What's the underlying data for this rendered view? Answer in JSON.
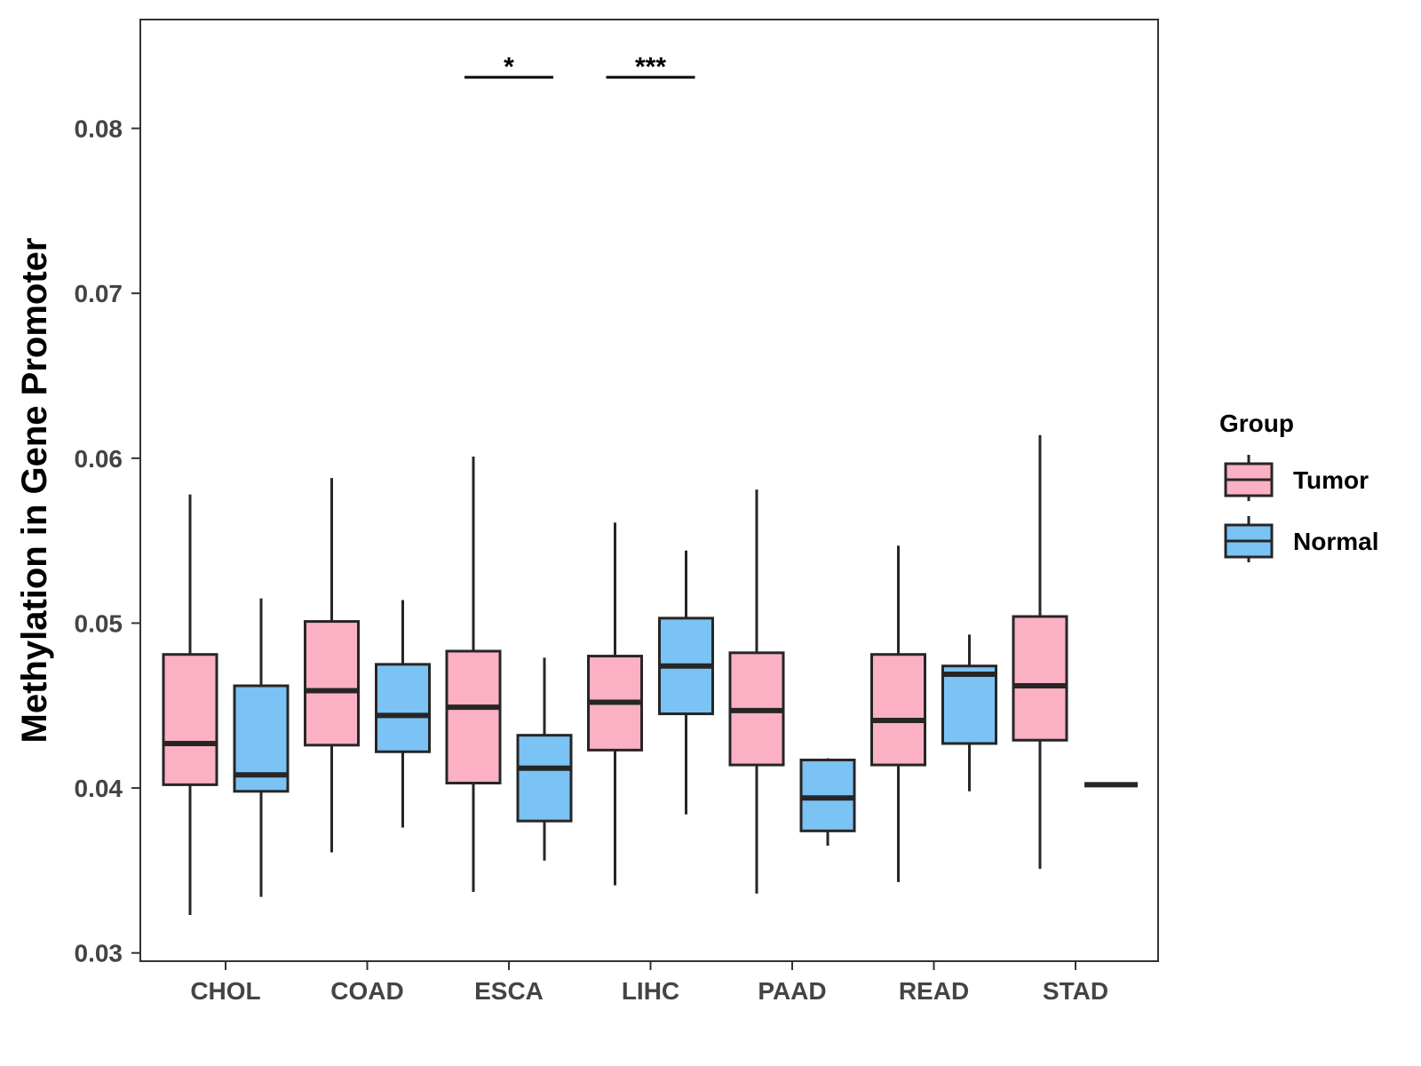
{
  "chart_data": {
    "type": "boxplot",
    "title": "",
    "xlabel": "",
    "ylabel": "Methylation in Gene Promoter",
    "ylim": [
      0.0295,
      0.0866
    ],
    "yticks": [
      0.03,
      0.04,
      0.05,
      0.06,
      0.07,
      0.08
    ],
    "ytick_labels": [
      "0.03",
      "0.04",
      "0.05",
      "0.06",
      "0.07",
      "0.08"
    ],
    "categories": [
      "CHOL",
      "COAD",
      "ESCA",
      "LIHC",
      "PAAD",
      "READ",
      "STAD"
    ],
    "legend": {
      "title": "Group",
      "position": "right",
      "entries": [
        {
          "name": "Tumor",
          "color": "#FBB1C3"
        },
        {
          "name": "Normal",
          "color": "#7BC2F5"
        }
      ]
    },
    "series": [
      {
        "name": "Tumor",
        "color": "#FBB1C3",
        "boxes": [
          {
            "category": "CHOL",
            "min": 0.0323,
            "q1": 0.0402,
            "median": 0.0427,
            "q3": 0.0481,
            "max": 0.0578
          },
          {
            "category": "COAD",
            "min": 0.0361,
            "q1": 0.0426,
            "median": 0.0459,
            "q3": 0.0501,
            "max": 0.0588
          },
          {
            "category": "ESCA",
            "min": 0.0337,
            "q1": 0.0403,
            "median": 0.0449,
            "q3": 0.0483,
            "max": 0.0601
          },
          {
            "category": "LIHC",
            "min": 0.0341,
            "q1": 0.0423,
            "median": 0.0452,
            "q3": 0.048,
            "max": 0.0561
          },
          {
            "category": "PAAD",
            "min": 0.0336,
            "q1": 0.0414,
            "median": 0.0447,
            "q3": 0.0482,
            "max": 0.0581
          },
          {
            "category": "READ",
            "min": 0.0343,
            "q1": 0.0414,
            "median": 0.0441,
            "q3": 0.0481,
            "max": 0.0547
          },
          {
            "category": "STAD",
            "min": 0.0351,
            "q1": 0.0429,
            "median": 0.0462,
            "q3": 0.0504,
            "max": 0.0614
          }
        ]
      },
      {
        "name": "Normal",
        "color": "#7BC2F5",
        "boxes": [
          {
            "category": "CHOL",
            "min": 0.0334,
            "q1": 0.0398,
            "median": 0.0408,
            "q3": 0.0462,
            "max": 0.0515
          },
          {
            "category": "COAD",
            "min": 0.0376,
            "q1": 0.0422,
            "median": 0.0444,
            "q3": 0.0475,
            "max": 0.0514
          },
          {
            "category": "ESCA",
            "min": 0.0356,
            "q1": 0.038,
            "median": 0.0412,
            "q3": 0.0432,
            "max": 0.0479
          },
          {
            "category": "LIHC",
            "min": 0.0384,
            "q1": 0.0445,
            "median": 0.0474,
            "q3": 0.0503,
            "max": 0.0544
          },
          {
            "category": "PAAD",
            "min": 0.0365,
            "q1": 0.0374,
            "median": 0.0394,
            "q3": 0.0417,
            "max": 0.0418
          },
          {
            "category": "READ",
            "min": 0.0398,
            "q1": 0.0427,
            "median": 0.0469,
            "q3": 0.0474,
            "max": 0.0493
          },
          {
            "category": "STAD",
            "min": 0.0402,
            "q1": 0.0402,
            "median": 0.0402,
            "q3": 0.0402,
            "max": 0.0402
          }
        ]
      }
    ],
    "annotations": [
      {
        "category": "ESCA",
        "label": "*",
        "y": 0.0831
      },
      {
        "category": "LIHC",
        "label": "***",
        "y": 0.0831
      }
    ]
  }
}
